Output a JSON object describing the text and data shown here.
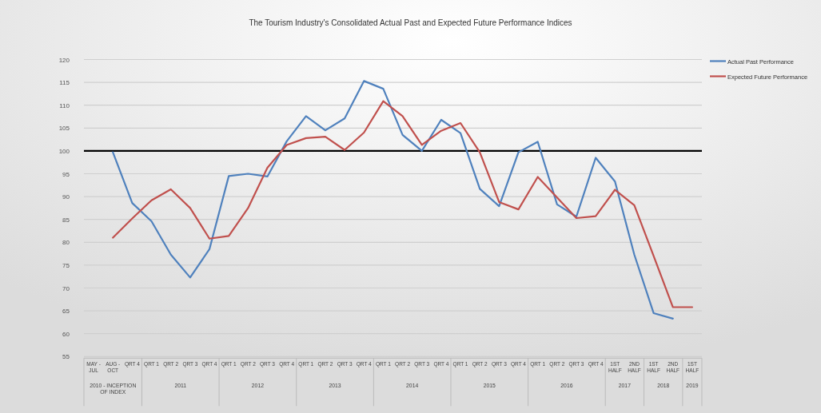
{
  "chart_data": {
    "type": "line",
    "title": "The Tourism Industry's Consolidated Actual Past and Expected Future Performance Indices",
    "categories": [
      "MAY - JUL",
      "AUG - OCT",
      "QRT 4",
      "QRT 1",
      "QRT 2",
      "QRT 3",
      "QRT 4",
      "QRT 1",
      "QRT 2",
      "QRT 3",
      "QRT 4",
      "QRT 1",
      "QRT 2",
      "QRT 3",
      "QRT 4",
      "QRT 1",
      "QRT 2",
      "QRT 3",
      "QRT 4",
      "QRT 1",
      "QRT 2",
      "QRT 3",
      "QRT 4",
      "QRT 1",
      "QRT 2",
      "QRT 3",
      "QRT 4",
      "1ST HALF",
      "2ND HALF",
      "1ST HALF",
      "2ND HALF",
      "1ST HALF"
    ],
    "series": [
      {
        "name": "Actual Past Performance",
        "color": "#4f81bd",
        "values": [
          null,
          99.7,
          88.6,
          84.6,
          77.3,
          72.3,
          78.5,
          94.5,
          95.0,
          94.4,
          102.1,
          107.6,
          104.5,
          107.1,
          115.3,
          113.6,
          103.5,
          100.0,
          106.8,
          103.9,
          91.7,
          87.9,
          99.7,
          102.0,
          88.3,
          85.6,
          98.5,
          93.3,
          77.3,
          64.5,
          63.3,
          null
        ]
      },
      {
        "name": "Expected Future Performance",
        "color": "#c0504d",
        "values": [
          null,
          81.0,
          85.2,
          89.2,
          91.6,
          87.5,
          80.8,
          81.4,
          87.5,
          96.3,
          101.3,
          102.8,
          103.1,
          100.2,
          104.0,
          110.9,
          107.6,
          101.3,
          104.4,
          106.1,
          99.7,
          88.8,
          87.2,
          94.3,
          89.8,
          85.3,
          85.7,
          91.5,
          88.1,
          77.0,
          65.8,
          65.8
        ]
      }
    ],
    "annotations": [
      "2010 - INCEPTION OF INDEX",
      "2011",
      "2012",
      "2013",
      "2014",
      "2015",
      "2016",
      "2017",
      "2018",
      "2019"
    ],
    "ylim": [
      55,
      120
    ],
    "yticks": [
      55,
      60,
      65,
      70,
      75,
      80,
      85,
      90,
      95,
      100,
      105,
      110,
      115,
      120
    ],
    "ref_lines": [
      {
        "axis": "y",
        "value": 100,
        "color": "#000000"
      }
    ],
    "grid": "y",
    "legend": "top right",
    "line_style": "solid",
    "marker": "none"
  }
}
